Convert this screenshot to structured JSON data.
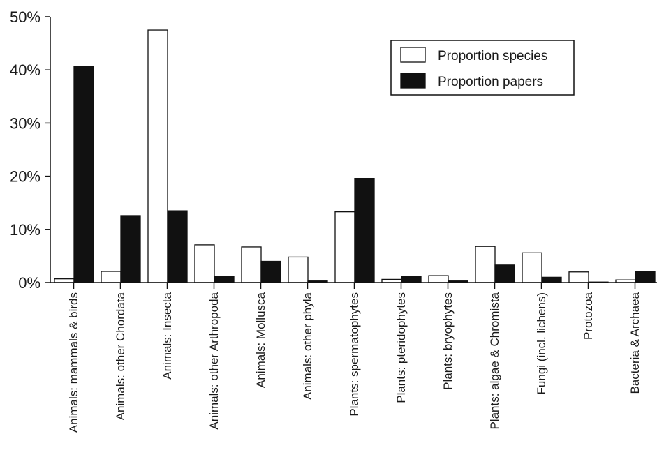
{
  "chart_data": {
    "type": "bar",
    "title": "",
    "xlabel": "",
    "ylabel": "",
    "ylim": [
      0,
      50
    ],
    "yticks": [
      0,
      10,
      20,
      30,
      40,
      50
    ],
    "ytick_labels": [
      "0%",
      "10%",
      "20%",
      "30%",
      "40%",
      "50%"
    ],
    "grid": false,
    "legend_position": "top-right",
    "categories": [
      "Animals: mammals & birds",
      "Animals: other Chordata",
      "Animals: Insecta",
      "Animals: other Arthropoda",
      "Animals: Mollusca",
      "Animals: other phyla",
      "Plants: spermatophytes",
      "Plants: pteridophytes",
      "Plants: bryophytes",
      "Plants: algae & Chromista",
      "Fungi (incl. lichens)",
      "Protozoa",
      "Bacteria & Archaea"
    ],
    "series": [
      {
        "name": "Proportion species",
        "fill": "#ffffff",
        "stroke": "#111111",
        "values": [
          0.7,
          2.1,
          47.5,
          7.1,
          6.7,
          4.8,
          13.3,
          0.6,
          1.3,
          6.8,
          5.6,
          2.0,
          0.5
        ]
      },
      {
        "name": "Proportion papers",
        "fill": "#111111",
        "stroke": "#111111",
        "values": [
          40.7,
          12.6,
          13.5,
          1.1,
          4.0,
          0.3,
          19.6,
          1.1,
          0.3,
          3.3,
          1.0,
          0.1,
          2.1
        ]
      }
    ]
  }
}
